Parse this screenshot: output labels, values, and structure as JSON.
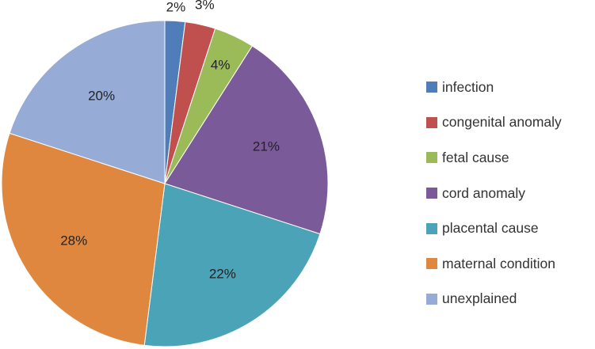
{
  "chart_data": {
    "type": "pie",
    "start_angle_deg": 0,
    "direction": "clockwise",
    "legend_position": "right",
    "slices": [
      {
        "category": "infection",
        "value": 2,
        "label": "2%",
        "color": "#4F7DBA"
      },
      {
        "category": "congenital anomaly",
        "value": 3,
        "label": "3%",
        "color": "#C0504D"
      },
      {
        "category": "fetal cause",
        "value": 4,
        "label": "4%",
        "color": "#9BBB59"
      },
      {
        "category": "cord anomaly",
        "value": 21,
        "label": "21%",
        "color": "#7A5A98"
      },
      {
        "category": "placental cause",
        "value": 22,
        "label": "22%",
        "color": "#4BA3B7"
      },
      {
        "category": "maternal condition",
        "value": 28,
        "label": "28%",
        "color": "#E0873F"
      },
      {
        "category": "unexplained",
        "value": 20,
        "label": "20%",
        "color": "#96ABD6"
      }
    ]
  }
}
